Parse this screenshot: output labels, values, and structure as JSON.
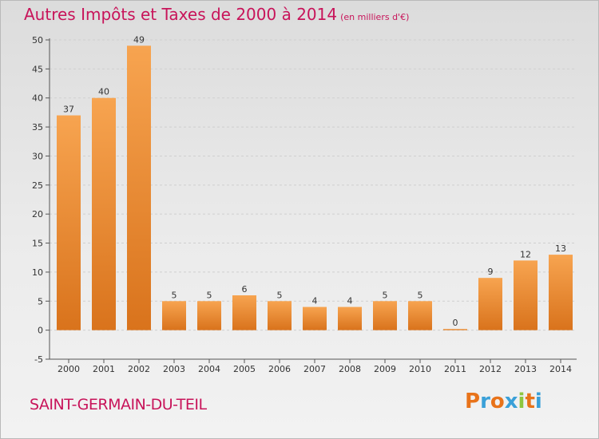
{
  "header": {
    "title": "Autres Impôts et Taxes de 2000 à 2014",
    "unit": "(en milliers d'€)"
  },
  "footer": {
    "town": "SAINT-GERMAIN-DU-TEIL",
    "logo": "Proxiti"
  },
  "colors": {
    "title": "#c8145a",
    "bar_light": "#f7a450",
    "bar_dark": "#d9731c",
    "grid": "#cfcfcf"
  },
  "chart_data": {
    "type": "bar",
    "title": "Autres Impôts et Taxes de 2000 à 2014",
    "subtitle": "(en milliers d'€)",
    "xlabel": "",
    "ylabel": "",
    "categories": [
      "2000",
      "2001",
      "2002",
      "2003",
      "2004",
      "2005",
      "2006",
      "2007",
      "2008",
      "2009",
      "2010",
      "2011",
      "2012",
      "2013",
      "2014"
    ],
    "values": [
      37,
      40,
      49,
      5,
      5,
      6,
      5,
      4,
      4,
      5,
      5,
      0,
      9,
      12,
      13
    ],
    "ylim": [
      -5,
      50
    ],
    "yticks": [
      -5,
      0,
      5,
      10,
      15,
      20,
      25,
      30,
      35,
      40,
      45,
      50
    ],
    "grid": "horizontal dashed",
    "legend": "none"
  }
}
